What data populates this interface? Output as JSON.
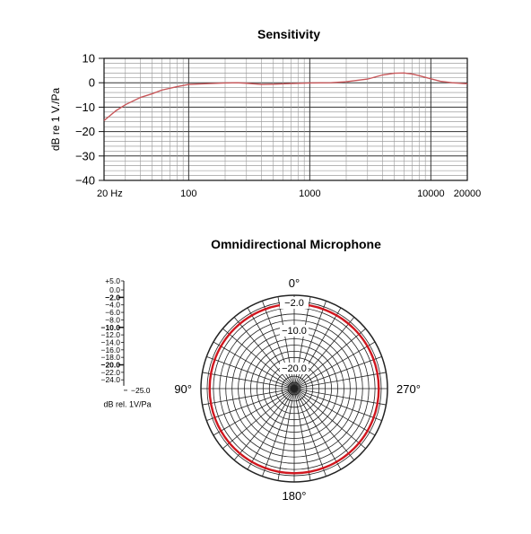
{
  "chart_data": [
    {
      "type": "line",
      "title": "Sensitivity",
      "xlabel": "",
      "ylabel": "dB re 1 V./Pa",
      "xscale": "log",
      "xlim": [
        20,
        20000
      ],
      "ylim": [
        -40,
        10
      ],
      "grid": true,
      "xticks": [
        {
          "value": 20,
          "label": "20 Hz"
        },
        {
          "value": 100,
          "label": "100"
        },
        {
          "value": 1000,
          "label": "1000"
        },
        {
          "value": 10000,
          "label": "10000"
        },
        {
          "value": 20000,
          "label": "20000"
        }
      ],
      "yticks": [
        {
          "value": 10,
          "label": "10"
        },
        {
          "value": 0,
          "label": "0"
        },
        {
          "value": -10,
          "label": "−10"
        },
        {
          "value": -20,
          "label": "−20"
        },
        {
          "value": -30,
          "label": "−30"
        },
        {
          "value": -40,
          "label": "−40"
        }
      ],
      "series": [
        {
          "color": "#c8575a",
          "x": [
            20,
            25,
            30,
            40,
            50,
            60,
            80,
            100,
            150,
            200,
            250,
            300,
            400,
            500,
            700,
            1000,
            1500,
            2000,
            3000,
            4000,
            5000,
            6000,
            7000,
            8000,
            10000,
            12000,
            15000,
            20000
          ],
          "y": [
            -15.5,
            -11.5,
            -9,
            -6,
            -4.5,
            -3,
            -1.6,
            -0.7,
            -0.3,
            -0.1,
            0,
            -0.2,
            -0.7,
            -0.6,
            -0.3,
            -0.1,
            0,
            0.4,
            1.5,
            3.2,
            3.9,
            4,
            3.6,
            2.9,
            1.6,
            0.6,
            0,
            -0.4
          ]
        }
      ]
    },
    {
      "type": "polar",
      "title": "Omnidirectional Microphone",
      "angle_labels": [
        "0°",
        "90°",
        "180°",
        "270°"
      ],
      "ring_labels": [
        "−2.0",
        "−10.0",
        "−20.0"
      ],
      "scale": {
        "labels": [
          "+5.0",
          "0.0",
          "−2.0",
          "−4.0",
          "−6.0",
          "−8.0",
          "−10.0",
          "−12.0",
          "−14.0",
          "−16.0",
          "−18.0",
          "−20.0",
          "−22.0",
          "−24.0",
          "−25.0"
        ],
        "bold": [
          "−2.0",
          "−10.0",
          "−20.0"
        ],
        "caption": "dB rel. 1V/Pa"
      },
      "series": [
        {
          "color": "#d0161e",
          "level_db": -2.0,
          "pattern": "omnidirectional"
        }
      ]
    }
  ]
}
